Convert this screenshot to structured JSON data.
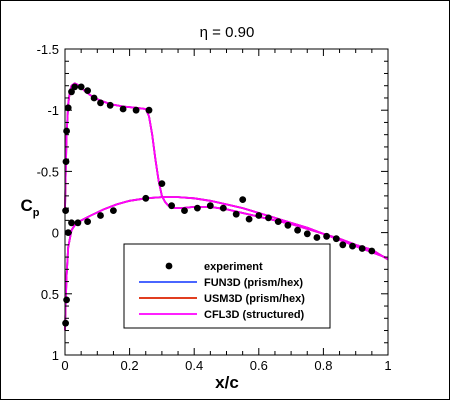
{
  "chart_data": {
    "type": "line",
    "title": "η = 0.90",
    "xlabel": "x/c",
    "ylabel": "C",
    "ylabel_sub": "p",
    "xlim": [
      0,
      1
    ],
    "ylim": [
      1,
      -1.5
    ],
    "y_inverted": true,
    "x_ticks": [
      0,
      0.2,
      0.4,
      0.6,
      0.8,
      1
    ],
    "x_tick_labels": [
      "0",
      "0.2",
      "0.4",
      "0.6",
      "0.8",
      "1"
    ],
    "y_ticks": [
      -1.5,
      -1,
      -0.5,
      0,
      0.5,
      1
    ],
    "y_tick_labels": [
      "-1.5",
      "-1",
      "-0.5",
      "0",
      "0.5",
      "1"
    ],
    "grid": false,
    "legend_position": "bottom-center",
    "legend": [
      "experiment",
      "FUN3D (prism/hex)",
      "USM3D (prism/hex)",
      "CFL3D (structured)"
    ],
    "series": [
      {
        "name": "experiment",
        "kind": "scatter",
        "color": "#000000",
        "x": [
          0.002,
          0.003,
          0.005,
          0.01,
          0.02,
          0.03,
          0.05,
          0.07,
          0.09,
          0.11,
          0.14,
          0.18,
          0.22,
          0.26,
          0.3,
          0.33,
          0.37,
          0.41,
          0.45,
          0.49,
          0.53,
          0.55,
          0.57,
          0.6,
          0.63,
          0.66,
          0.69,
          0.72,
          0.75,
          0.78,
          0.81,
          0.84,
          0.86,
          0.89,
          0.92,
          0.95,
          0.002,
          0.005,
          0.01,
          0.02,
          0.04,
          0.07,
          0.11,
          0.15,
          0.25
        ],
        "y": [
          -0.18,
          -0.58,
          -0.83,
          -1.02,
          -1.15,
          -1.19,
          -1.19,
          -1.16,
          -1.1,
          -1.06,
          -1.04,
          -1.01,
          -1.0,
          -1.0,
          -0.4,
          -0.22,
          -0.18,
          -0.2,
          -0.22,
          -0.2,
          -0.15,
          -0.27,
          -0.11,
          -0.14,
          -0.12,
          -0.09,
          -0.06,
          -0.02,
          0.01,
          0.04,
          0.03,
          0.05,
          0.1,
          0.11,
          0.13,
          0.15,
          0.74,
          0.55,
          0.0,
          -0.08,
          -0.08,
          -0.09,
          -0.14,
          -0.18,
          -0.28
        ]
      },
      {
        "name": "FUN3D (prism/hex)",
        "kind": "line",
        "color": "#3050ff",
        "x": [
          0.0,
          0.002,
          0.005,
          0.01,
          0.015,
          0.02,
          0.03,
          0.045,
          0.06,
          0.08,
          0.1,
          0.14,
          0.18,
          0.22,
          0.25,
          0.26,
          0.27,
          0.28,
          0.29,
          0.3,
          0.31,
          0.32,
          0.34,
          0.36,
          0.4,
          0.45,
          0.5,
          0.55,
          0.6,
          0.65,
          0.7,
          0.75,
          0.8,
          0.85,
          0.9,
          0.95,
          1.0
        ],
        "y": [
          -0.18,
          -0.45,
          -0.8,
          -1.05,
          -1.15,
          -1.2,
          -1.22,
          -1.2,
          -1.16,
          -1.12,
          -1.09,
          -1.05,
          -1.03,
          -1.02,
          -1.01,
          -0.95,
          -0.8,
          -0.6,
          -0.42,
          -0.3,
          -0.25,
          -0.22,
          -0.2,
          -0.2,
          -0.21,
          -0.21,
          -0.19,
          -0.16,
          -0.13,
          -0.1,
          -0.07,
          -0.03,
          0.01,
          0.05,
          0.1,
          0.14,
          0.22
        ]
      },
      {
        "name": "USM3D (prism/hex)",
        "kind": "line",
        "color": "#dd2200",
        "x": [
          0.0,
          0.002,
          0.005,
          0.01,
          0.015,
          0.02,
          0.03,
          0.045,
          0.06,
          0.08,
          0.1,
          0.14,
          0.18,
          0.22,
          0.25,
          0.26,
          0.27,
          0.28,
          0.29,
          0.3,
          0.31,
          0.32,
          0.34,
          0.36,
          0.4,
          0.45,
          0.5,
          0.55,
          0.6,
          0.65,
          0.7,
          0.75,
          0.8,
          0.85,
          0.9,
          0.95,
          1.0
        ],
        "y": [
          -0.18,
          -0.45,
          -0.8,
          -1.05,
          -1.15,
          -1.2,
          -1.22,
          -1.2,
          -1.16,
          -1.12,
          -1.09,
          -1.05,
          -1.03,
          -1.02,
          -1.01,
          -0.95,
          -0.8,
          -0.6,
          -0.42,
          -0.3,
          -0.25,
          -0.22,
          -0.2,
          -0.2,
          -0.21,
          -0.21,
          -0.19,
          -0.16,
          -0.13,
          -0.1,
          -0.07,
          -0.03,
          0.01,
          0.05,
          0.1,
          0.14,
          0.22
        ]
      },
      {
        "name": "CFL3D (structured)",
        "kind": "line",
        "color": "#ff00ff",
        "x": [
          0.0,
          0.002,
          0.005,
          0.01,
          0.015,
          0.02,
          0.03,
          0.045,
          0.06,
          0.08,
          0.1,
          0.14,
          0.18,
          0.22,
          0.25,
          0.26,
          0.27,
          0.28,
          0.29,
          0.3,
          0.31,
          0.32,
          0.34,
          0.36,
          0.4,
          0.45,
          0.5,
          0.55,
          0.6,
          0.65,
          0.7,
          0.75,
          0.8,
          0.85,
          0.9,
          0.95,
          1.0
        ],
        "y": [
          -0.18,
          -0.45,
          -0.8,
          -1.05,
          -1.15,
          -1.2,
          -1.22,
          -1.2,
          -1.16,
          -1.12,
          -1.09,
          -1.05,
          -1.03,
          -1.02,
          -1.01,
          -0.95,
          -0.8,
          -0.6,
          -0.42,
          -0.3,
          -0.25,
          -0.22,
          -0.2,
          -0.2,
          -0.21,
          -0.21,
          -0.19,
          -0.16,
          -0.13,
          -0.1,
          -0.07,
          -0.03,
          0.01,
          0.05,
          0.1,
          0.14,
          0.22
        ]
      },
      {
        "name": "FUN3D (prism/hex)",
        "kind": "line",
        "color": "#3050ff",
        "x": [
          0.0,
          0.002,
          0.005,
          0.01,
          0.02,
          0.03,
          0.05,
          0.08,
          0.12,
          0.16,
          0.2,
          0.25,
          0.3,
          0.35,
          0.4,
          0.45,
          0.5,
          0.55,
          0.6,
          0.65,
          0.7,
          0.75,
          0.8,
          0.85,
          0.9,
          0.95,
          1.0
        ],
        "y": [
          0.8,
          0.6,
          0.35,
          0.12,
          -0.02,
          -0.06,
          -0.1,
          -0.14,
          -0.19,
          -0.23,
          -0.26,
          -0.28,
          -0.29,
          -0.29,
          -0.28,
          -0.26,
          -0.23,
          -0.2,
          -0.16,
          -0.12,
          -0.08,
          -0.04,
          0.01,
          0.06,
          0.11,
          0.16,
          0.21
        ]
      },
      {
        "name": "USM3D (prism/hex)",
        "kind": "line",
        "color": "#dd2200",
        "x": [
          0.0,
          0.002,
          0.005,
          0.01,
          0.02,
          0.03,
          0.05,
          0.08,
          0.12,
          0.16,
          0.2,
          0.25,
          0.3,
          0.35,
          0.4,
          0.45,
          0.5,
          0.55,
          0.6,
          0.65,
          0.7,
          0.75,
          0.8,
          0.85,
          0.9,
          0.95,
          1.0
        ],
        "y": [
          0.8,
          0.6,
          0.35,
          0.12,
          -0.02,
          -0.06,
          -0.1,
          -0.14,
          -0.19,
          -0.23,
          -0.26,
          -0.28,
          -0.29,
          -0.29,
          -0.28,
          -0.26,
          -0.23,
          -0.2,
          -0.16,
          -0.12,
          -0.08,
          -0.04,
          0.01,
          0.06,
          0.11,
          0.16,
          0.21
        ]
      },
      {
        "name": "CFL3D (structured)",
        "kind": "line",
        "color": "#ff00ff",
        "x": [
          0.0,
          0.002,
          0.005,
          0.01,
          0.02,
          0.03,
          0.05,
          0.08,
          0.12,
          0.16,
          0.2,
          0.25,
          0.3,
          0.35,
          0.4,
          0.45,
          0.5,
          0.55,
          0.6,
          0.65,
          0.7,
          0.75,
          0.8,
          0.85,
          0.9,
          0.95,
          1.0
        ],
        "y": [
          0.8,
          0.6,
          0.35,
          0.12,
          -0.02,
          -0.06,
          -0.1,
          -0.14,
          -0.19,
          -0.23,
          -0.26,
          -0.28,
          -0.29,
          -0.29,
          -0.28,
          -0.26,
          -0.23,
          -0.2,
          -0.16,
          -0.12,
          -0.08,
          -0.04,
          0.01,
          0.06,
          0.11,
          0.16,
          0.21
        ]
      }
    ]
  }
}
